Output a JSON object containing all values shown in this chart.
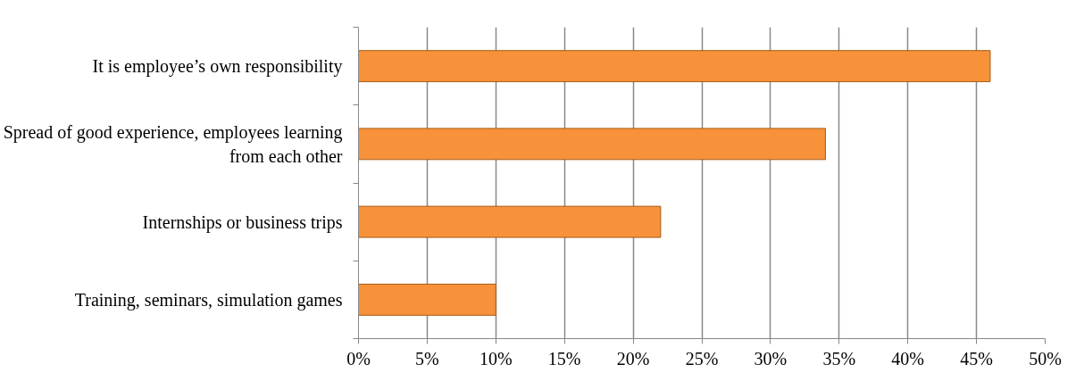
{
  "chart_data": {
    "type": "bar",
    "orientation": "horizontal",
    "categories": [
      "It is employee’s own responsibility",
      "Spread of good experience, employees learning from each other",
      "Internships or business trips",
      "Training, seminars, simulation games"
    ],
    "values": [
      46,
      34,
      22,
      10
    ],
    "color": "#f7923a",
    "xlim": [
      0,
      50
    ],
    "xticks": [
      {
        "value": 0,
        "label": "0%"
      },
      {
        "value": 5,
        "label": "5%"
      },
      {
        "value": 10,
        "label": "10%"
      },
      {
        "value": 15,
        "label": "15%"
      },
      {
        "value": 20,
        "label": "20%"
      },
      {
        "value": 25,
        "label": "25%"
      },
      {
        "value": 30,
        "label": "30%"
      },
      {
        "value": 35,
        "label": "35%"
      },
      {
        "value": 40,
        "label": "40%"
      },
      {
        "value": 45,
        "label": "45%"
      },
      {
        "value": 50,
        "label": "50%"
      }
    ],
    "grid": "x"
  }
}
